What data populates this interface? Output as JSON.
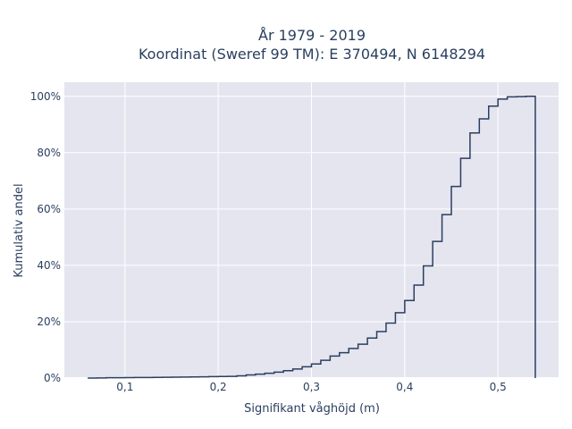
{
  "chart_data": {
    "type": "line",
    "subtype": "cumulative-step",
    "title_line1": "År 1979 - 2019",
    "title_line2": "Koordinat (Sweref 99 TM): E 370494, N 6148294",
    "xlabel": "Signifikant våghöjd (m)",
    "ylabel": "Kumulativ andel",
    "xlim": [
      0.035,
      0.565
    ],
    "ylim": [
      0,
      1.05
    ],
    "x_ticks": [
      0.1,
      0.2,
      0.3,
      0.4,
      0.5
    ],
    "x_tick_labels": [
      "0,1",
      "0,2",
      "0,3",
      "0,4",
      "0,5"
    ],
    "y_ticks": [
      0,
      0.2,
      0.4,
      0.6,
      0.8,
      1.0
    ],
    "y_tick_labels": [
      "0%",
      "20%",
      "40%",
      "60%",
      "80%",
      "100%"
    ],
    "grid": true,
    "colors": {
      "plot_bg": "#e5e5f0",
      "grid": "#ffffff",
      "line": "#2a3f5f"
    },
    "x": [
      0.06,
      0.07,
      0.08,
      0.09,
      0.1,
      0.11,
      0.12,
      0.13,
      0.14,
      0.15,
      0.16,
      0.17,
      0.18,
      0.19,
      0.2,
      0.21,
      0.22,
      0.23,
      0.24,
      0.25,
      0.26,
      0.27,
      0.28,
      0.29,
      0.3,
      0.31,
      0.32,
      0.33,
      0.34,
      0.35,
      0.36,
      0.37,
      0.38,
      0.39,
      0.4,
      0.41,
      0.42,
      0.43,
      0.44,
      0.45,
      0.46,
      0.47,
      0.48,
      0.49,
      0.5,
      0.51,
      0.52,
      0.53,
      0.54
    ],
    "y": [
      0.0,
      0.0005,
      0.001,
      0.0012,
      0.0015,
      0.0018,
      0.002,
      0.0023,
      0.0027,
      0.003,
      0.0035,
      0.004,
      0.0045,
      0.005,
      0.0055,
      0.006,
      0.008,
      0.011,
      0.014,
      0.017,
      0.021,
      0.026,
      0.032,
      0.04,
      0.05,
      0.063,
      0.078,
      0.09,
      0.105,
      0.12,
      0.142,
      0.165,
      0.195,
      0.232,
      0.275,
      0.33,
      0.398,
      0.485,
      0.58,
      0.68,
      0.78,
      0.87,
      0.92,
      0.965,
      0.99,
      0.998,
      0.999,
      1.0,
      1.0
    ]
  }
}
